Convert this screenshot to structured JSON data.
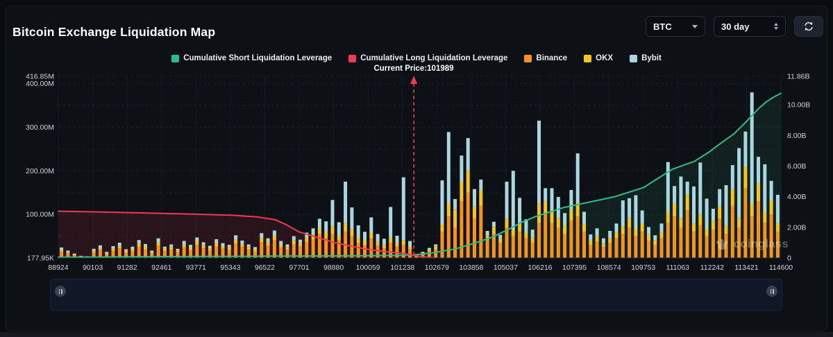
{
  "header": {
    "title": "Bitcoin Exchange Liquidation Map",
    "symbol_select": {
      "value": "BTC",
      "icon": "caret-down-icon"
    },
    "range_select": {
      "value": "30 day",
      "icon": "up-down-stepper-icon"
    },
    "refresh": {
      "icon": "refresh-icon"
    }
  },
  "legend": {
    "items": [
      {
        "label": "Cumulative Short Liquidation Leverage",
        "color": "#2ebd85"
      },
      {
        "label": "Cumulative Long Liquidation Leverage",
        "color": "#ef3a4f"
      },
      {
        "label": "Binance",
        "color": "#f7931a"
      },
      {
        "label": "OKX",
        "color": "#f5c51b"
      },
      {
        "label": "Bybit",
        "color": "#a9d7e0"
      }
    ]
  },
  "watermark": {
    "text": "coinglass",
    "icon": "coinglass-paw-icon"
  },
  "range_slider": {
    "left_handle": "drag-handle",
    "right_handle": "drag-handle"
  },
  "chart_data": {
    "type": "bar",
    "title": "Bitcoin Exchange Liquidation Map",
    "x_labels": [
      "88924",
      "90103",
      "91282",
      "92461",
      "93771",
      "95343",
      "96522",
      "97701",
      "98880",
      "100059",
      "101238",
      "102679",
      "103858",
      "105037",
      "106216",
      "107395",
      "108574",
      "109753",
      "111063",
      "112242",
      "113421",
      "114600"
    ],
    "left_axis": {
      "unit": "M",
      "max_value": 416.85,
      "tick_values": [
        416.85,
        400,
        300,
        200,
        100
      ],
      "tick_labels": [
        "416.85M",
        "400.00M",
        "300.00M",
        "200.00M",
        "100.00M"
      ],
      "zero_label": "177.95K",
      "minor_grid_step": 50
    },
    "right_axis": {
      "unit": "B",
      "max_value": 11.86,
      "tick_values": [
        11.86,
        10,
        8,
        6,
        4,
        2,
        0
      ],
      "tick_labels": [
        "11.86B",
        "10.00B",
        "8.00B",
        "6.00B",
        "4.00B",
        "2.00B",
        "0"
      ]
    },
    "current_price": {
      "label": "Current Price:101989",
      "value": 101989,
      "x_fraction": 0.492,
      "line_color": "#ef3a4f"
    },
    "bar_series": [
      {
        "name": "Binance",
        "color": "#f7931a",
        "values_M": [
          14,
          10,
          6,
          3,
          2,
          12,
          18,
          8,
          16,
          22,
          12,
          15,
          26,
          20,
          10,
          28,
          16,
          19,
          13,
          24,
          18,
          30,
          22,
          17,
          27,
          21,
          18,
          33,
          25,
          19,
          15,
          36,
          28,
          40,
          24,
          19,
          31,
          26,
          36,
          42,
          55,
          45,
          55,
          40,
          60,
          50,
          35,
          30,
          44,
          28,
          22,
          35,
          26,
          30,
          20,
          5,
          8,
          14,
          20,
          60,
          95,
          70,
          130,
          150,
          90,
          120,
          40,
          55,
          35,
          70,
          50,
          60,
          45,
          35,
          80,
          100,
          80,
          70,
          55,
          85,
          95,
          60,
          30,
          38,
          25,
          35,
          45,
          55,
          70,
          50,
          60,
          40,
          30,
          45,
          80,
          95,
          70,
          110,
          60,
          75,
          50,
          65,
          90,
          55,
          120,
          70,
          160,
          95,
          130,
          80,
          100,
          60
        ]
      },
      {
        "name": "OKX",
        "color": "#f5c51b",
        "values_M": [
          4,
          3,
          2,
          1,
          1,
          4,
          5,
          3,
          5,
          6,
          4,
          5,
          7,
          6,
          3,
          8,
          5,
          6,
          4,
          7,
          6,
          8,
          7,
          5,
          8,
          6,
          6,
          9,
          7,
          6,
          5,
          10,
          8,
          11,
          7,
          6,
          9,
          8,
          10,
          12,
          15,
          14,
          18,
          12,
          20,
          16,
          12,
          10,
          14,
          9,
          8,
          12,
          9,
          10,
          7,
          2,
          3,
          5,
          6,
          18,
          30,
          40,
          45,
          50,
          28,
          36,
          12,
          16,
          10,
          20,
          15,
          18,
          14,
          12,
          45,
          30,
          25,
          22,
          18,
          26,
          30,
          18,
          10,
          12,
          8,
          11,
          14,
          17,
          22,
          16,
          19,
          13,
          10,
          14,
          25,
          30,
          22,
          35,
          19,
          24,
          16,
          20,
          28,
          17,
          38,
          22,
          50,
          30,
          42,
          25,
          32,
          20
        ]
      },
      {
        "name": "Bybit",
        "color": "#a9d7e0",
        "values_M": [
          6,
          4,
          2,
          1,
          1,
          5,
          6,
          3,
          6,
          7,
          4,
          6,
          8,
          6,
          4,
          9,
          5,
          6,
          4,
          8,
          6,
          9,
          7,
          6,
          8,
          7,
          6,
          10,
          8,
          6,
          5,
          11,
          9,
          12,
          8,
          6,
          10,
          8,
          12,
          14,
          20,
          25,
          60,
          30,
          95,
          50,
          28,
          20,
          35,
          18,
          14,
          70,
          16,
          145,
          12,
          2,
          3,
          4,
          5,
          100,
          164,
          25,
          60,
          75,
          40,
          24,
          10,
          12,
          8,
          85,
          135,
          60,
          30,
          18,
          190,
          30,
          55,
          48,
          30,
          45,
          115,
          28,
          14,
          18,
          12,
          16,
          20,
          60,
          45,
          78,
          30,
          18,
          12,
          20,
          115,
          40,
          95,
          30,
          85,
          120,
          70,
          28,
          40,
          95,
          55,
          160,
          80,
          255,
          60,
          110,
          45,
          65
        ]
      }
    ],
    "line_series": [
      {
        "name": "Cumulative Short Liquidation Leverage",
        "color": "#2ebd85",
        "axis": "right",
        "fill": "rgba(46,189,133,0.10)",
        "points": [
          [
            0,
            0.05
          ],
          [
            0.05,
            0.06
          ],
          [
            0.1,
            0.08
          ],
          [
            0.15,
            0.09
          ],
          [
            0.2,
            0.1
          ],
          [
            0.25,
            0.11
          ],
          [
            0.3,
            0.12
          ],
          [
            0.35,
            0.13
          ],
          [
            0.4,
            0.14
          ],
          [
            0.44,
            0.16
          ],
          [
            0.47,
            0.17
          ],
          [
            0.492,
            0.2
          ],
          [
            0.52,
            0.35
          ],
          [
            0.55,
            0.6
          ],
          [
            0.575,
            0.95
          ],
          [
            0.6,
            1.35
          ],
          [
            0.62,
            1.8
          ],
          [
            0.64,
            2.3
          ],
          [
            0.66,
            2.7
          ],
          [
            0.68,
            3.0
          ],
          [
            0.7,
            3.3
          ],
          [
            0.715,
            3.45
          ],
          [
            0.73,
            3.6
          ],
          [
            0.75,
            3.8
          ],
          [
            0.77,
            4.0
          ],
          [
            0.79,
            4.3
          ],
          [
            0.81,
            4.6
          ],
          [
            0.83,
            5.2
          ],
          [
            0.85,
            5.8
          ],
          [
            0.865,
            6.05
          ],
          [
            0.88,
            6.3
          ],
          [
            0.9,
            6.9
          ],
          [
            0.92,
            7.6
          ],
          [
            0.935,
            8.1
          ],
          [
            0.95,
            8.8
          ],
          [
            0.96,
            9.3
          ],
          [
            0.97,
            9.8
          ],
          [
            0.98,
            10.2
          ],
          [
            0.99,
            10.5
          ],
          [
            1,
            10.75
          ]
        ]
      },
      {
        "name": "Cumulative Long Liquidation Leverage",
        "color": "#ef3a4f",
        "axis": "right",
        "fill": "rgba(214,48,65,0.14)",
        "points": [
          [
            0,
            3.05
          ],
          [
            0.06,
            3.0
          ],
          [
            0.12,
            2.94
          ],
          [
            0.18,
            2.87
          ],
          [
            0.24,
            2.79
          ],
          [
            0.275,
            2.68
          ],
          [
            0.3,
            2.5
          ],
          [
            0.315,
            2.18
          ],
          [
            0.333,
            1.7
          ],
          [
            0.36,
            1.32
          ],
          [
            0.381,
            1.02
          ],
          [
            0.4,
            0.82
          ],
          [
            0.429,
            0.56
          ],
          [
            0.45,
            0.43
          ],
          [
            0.476,
            0.3
          ],
          [
            0.49,
            0.19
          ],
          [
            0.5,
            0.11
          ],
          [
            0.51,
            0.05
          ],
          [
            0.52,
            0.01
          ]
        ]
      }
    ]
  }
}
